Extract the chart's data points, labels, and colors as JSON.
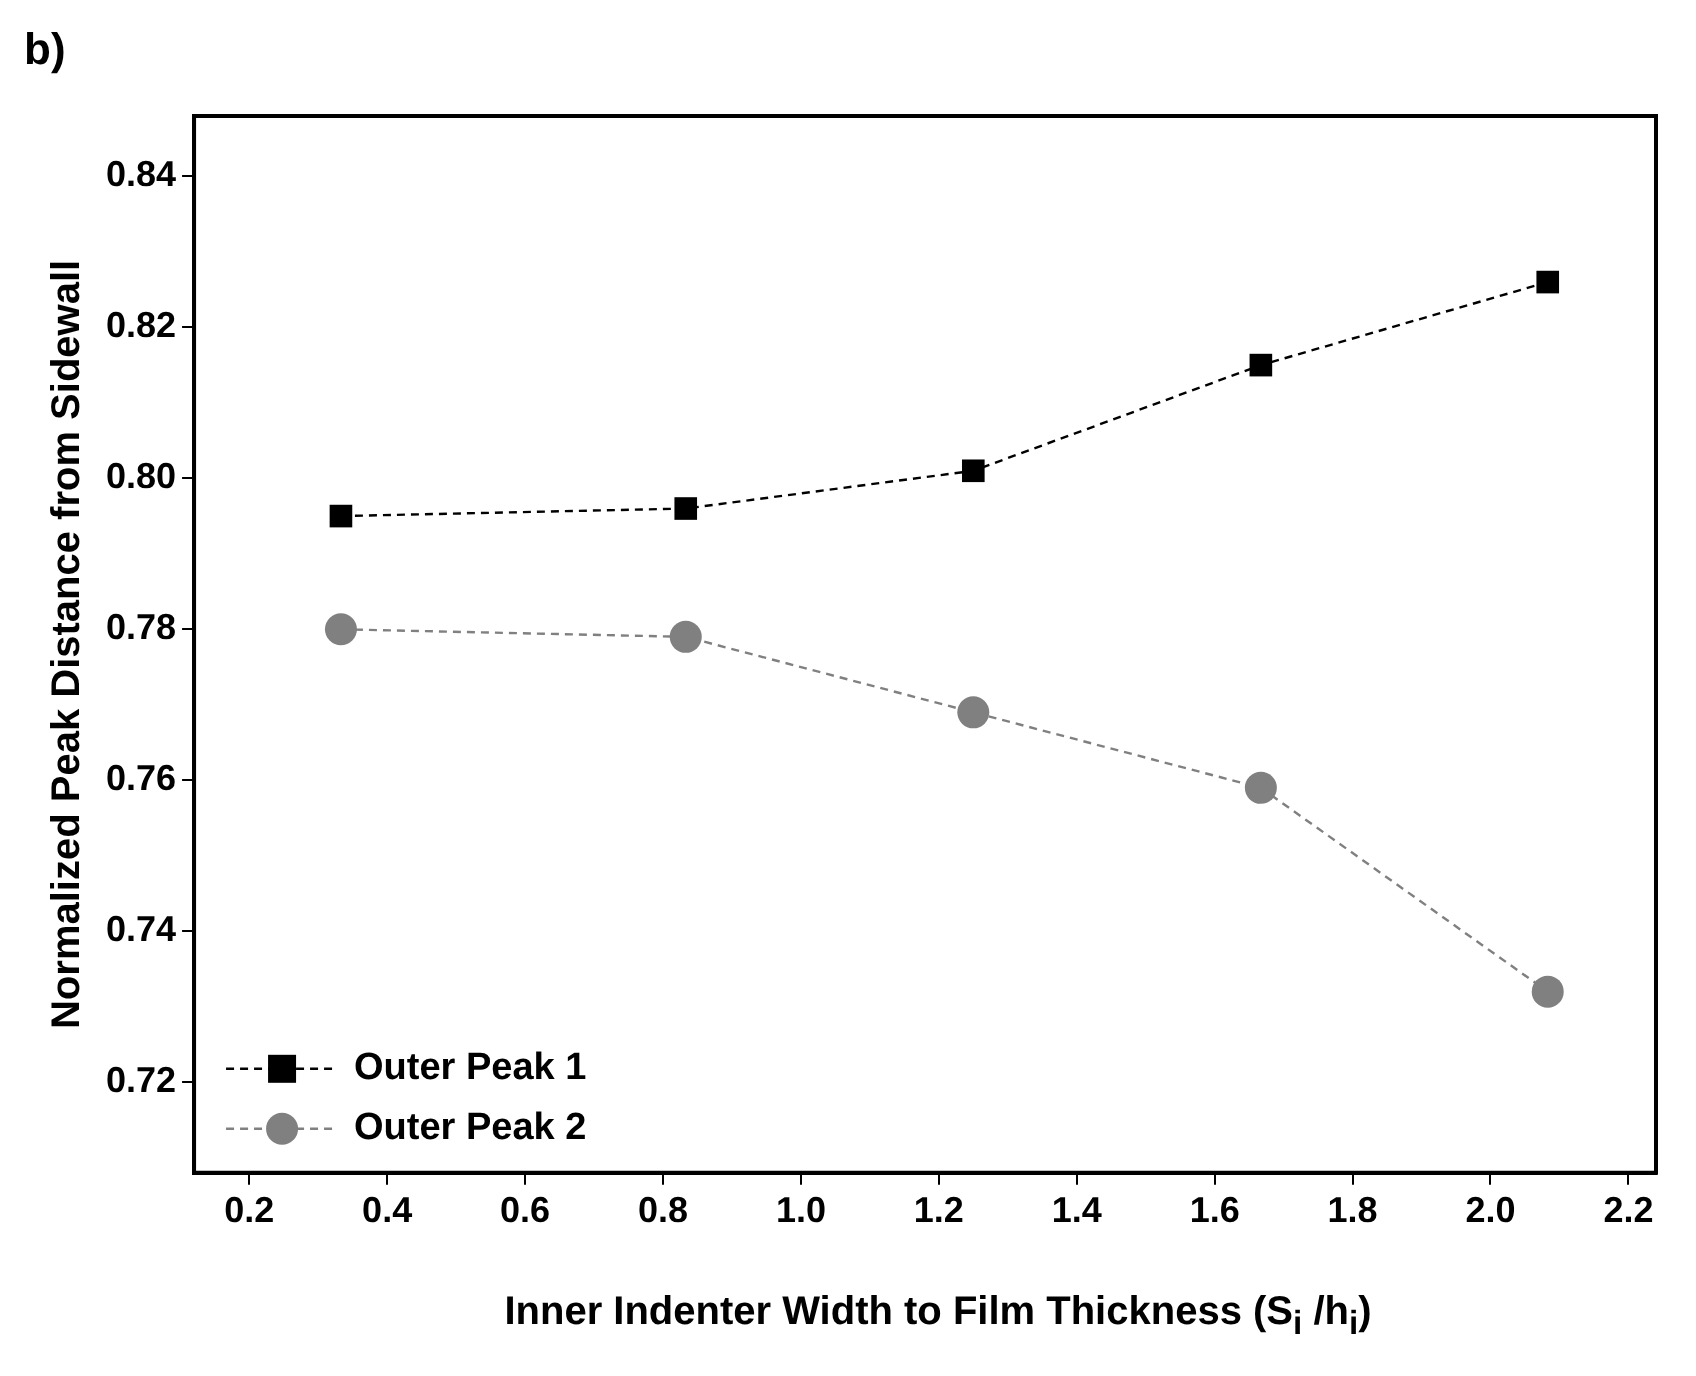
{
  "chart_data": {
    "type": "line",
    "xlabel": "Inner Indenter Width to Film Thickness (S$_{i}$ /h$_{i}$)",
    "ylabel": "Normalized Peak Distance from Sidewall",
    "annotations": [
      "b)"
    ],
    "xlim": [
      0.12,
      2.24
    ],
    "xticks": [
      0.2,
      0.4,
      0.6,
      0.8,
      {
        "value": 1,
        "label": "1.0"
      },
      1.2,
      1.4,
      1.6,
      1.8,
      {
        "value": 2,
        "label": "2.0"
      },
      2.2
    ],
    "ylim": [
      0.708,
      0.848
    ],
    "yticks": [
      0.72,
      0.74,
      0.76,
      0.78,
      {
        "value": 0.8,
        "label": "0.80"
      },
      0.82,
      0.84
    ],
    "grid": false,
    "legend": "bottom left",
    "line_style": "dashed",
    "series": [
      {
        "name": "Outer Peak 1",
        "color": "#000000",
        "marker": "square",
        "x": [
          0.333,
          0.833,
          1.25,
          1.667,
          2.083
        ],
        "values": [
          0.795,
          0.796,
          0.801,
          0.815,
          0.826
        ]
      },
      {
        "name": "Outer Peak 2",
        "color": "#808080",
        "marker": "circle",
        "x": [
          0.333,
          0.833,
          1.25,
          1.667,
          2.083
        ],
        "values": [
          0.78,
          0.779,
          0.769,
          0.759,
          0.732
        ]
      }
    ]
  }
}
